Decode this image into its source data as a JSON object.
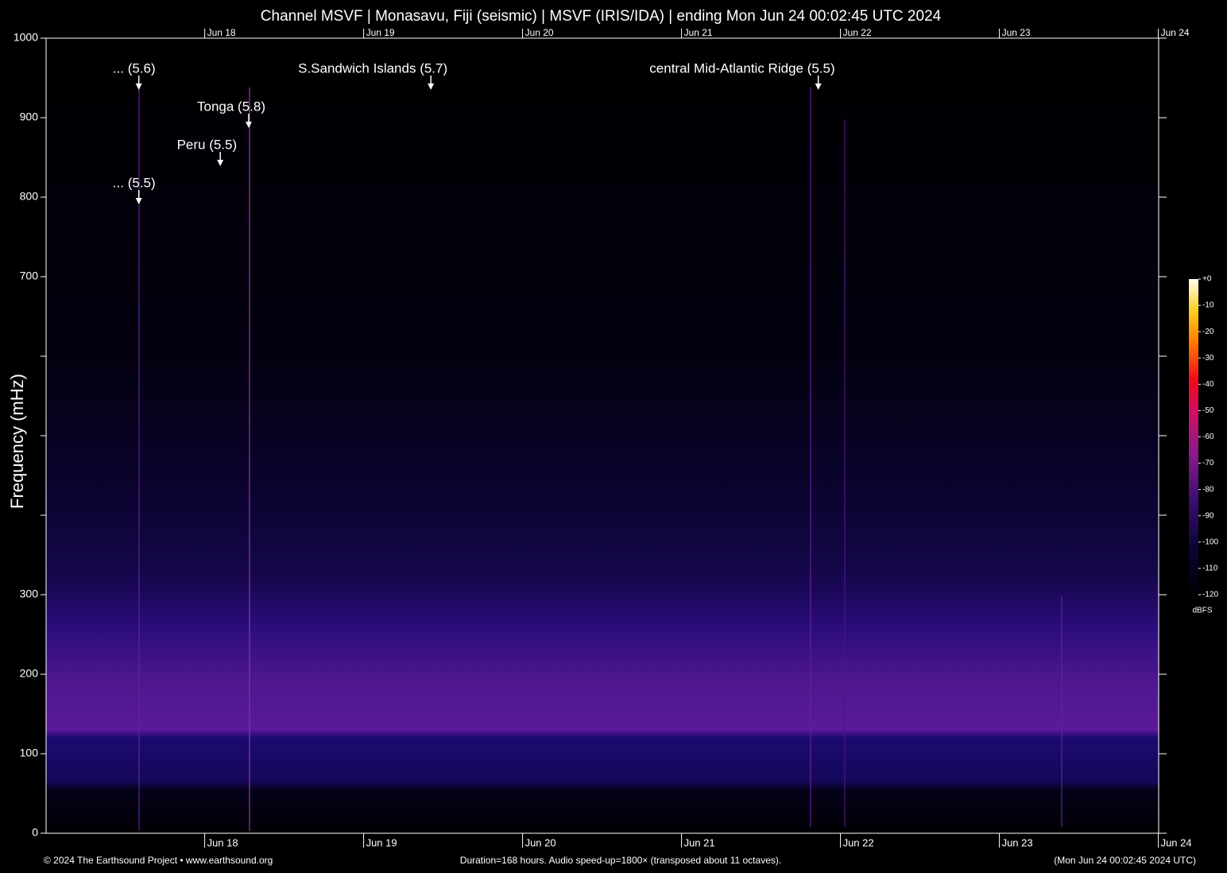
{
  "chart_data": {
    "type": "spectrogram",
    "title": "Channel MSVF | Monasavu, Fiji (seismic) | MSVF (IRIS/IDA) | ending Mon Jun 24 00:02:45 UTC 2024",
    "ylabel": "Frequency (mHz)",
    "xlim": [
      0,
      168
    ],
    "xticks": [
      {
        "value": 23.95,
        "label": "Jun 18"
      },
      {
        "value": 47.95,
        "label": "Jun 19"
      },
      {
        "value": 71.95,
        "label": "Jun 20"
      },
      {
        "value": 95.95,
        "label": "Jun 21"
      },
      {
        "value": 119.95,
        "label": "Jun 22"
      },
      {
        "value": 143.95,
        "label": "Jun 23"
      },
      {
        "value": 167.95,
        "label": "Jun 24"
      }
    ],
    "ylim": [
      0,
      1000
    ],
    "yticks": [
      0,
      100,
      200,
      300,
      700,
      800,
      900,
      1000
    ],
    "yticks_unlabeled": [
      400,
      500,
      600
    ],
    "annotations": [
      {
        "text": "... (5.6)",
        "x": 14.0,
        "y": 935
      },
      {
        "text": "Tonga (5.8)",
        "x": 30.6,
        "y": 887
      },
      {
        "text": "Peru (5.5)",
        "x": 26.3,
        "y": 839
      },
      {
        "text": "... (5.5)",
        "x": 14.0,
        "y": 791
      },
      {
        "text": "S.Sandwich Islands (5.7)",
        "x": 58.1,
        "y": 935
      },
      {
        "text": "central Mid-Atlantic Ridge (5.5)",
        "x": 116.6,
        "y": 935
      }
    ],
    "colorbar": {
      "label": "dBFS",
      "lim": [
        -120,
        0
      ],
      "ticks": [
        {
          "value": 0,
          "label": "+0"
        },
        -10,
        -20,
        -30,
        -40,
        -50,
        -60,
        -70,
        -80,
        -90,
        -100,
        -110,
        -120
      ]
    },
    "footer": {
      "left": "© 2024 The Earthsound Project • www.earthsound.org",
      "center": "Duration=168 hours. Audio speed-up=1800× (transposed about 11 octaves).",
      "right": "(Mon Jun 24 00:02:45 2024 UTC)"
    }
  }
}
